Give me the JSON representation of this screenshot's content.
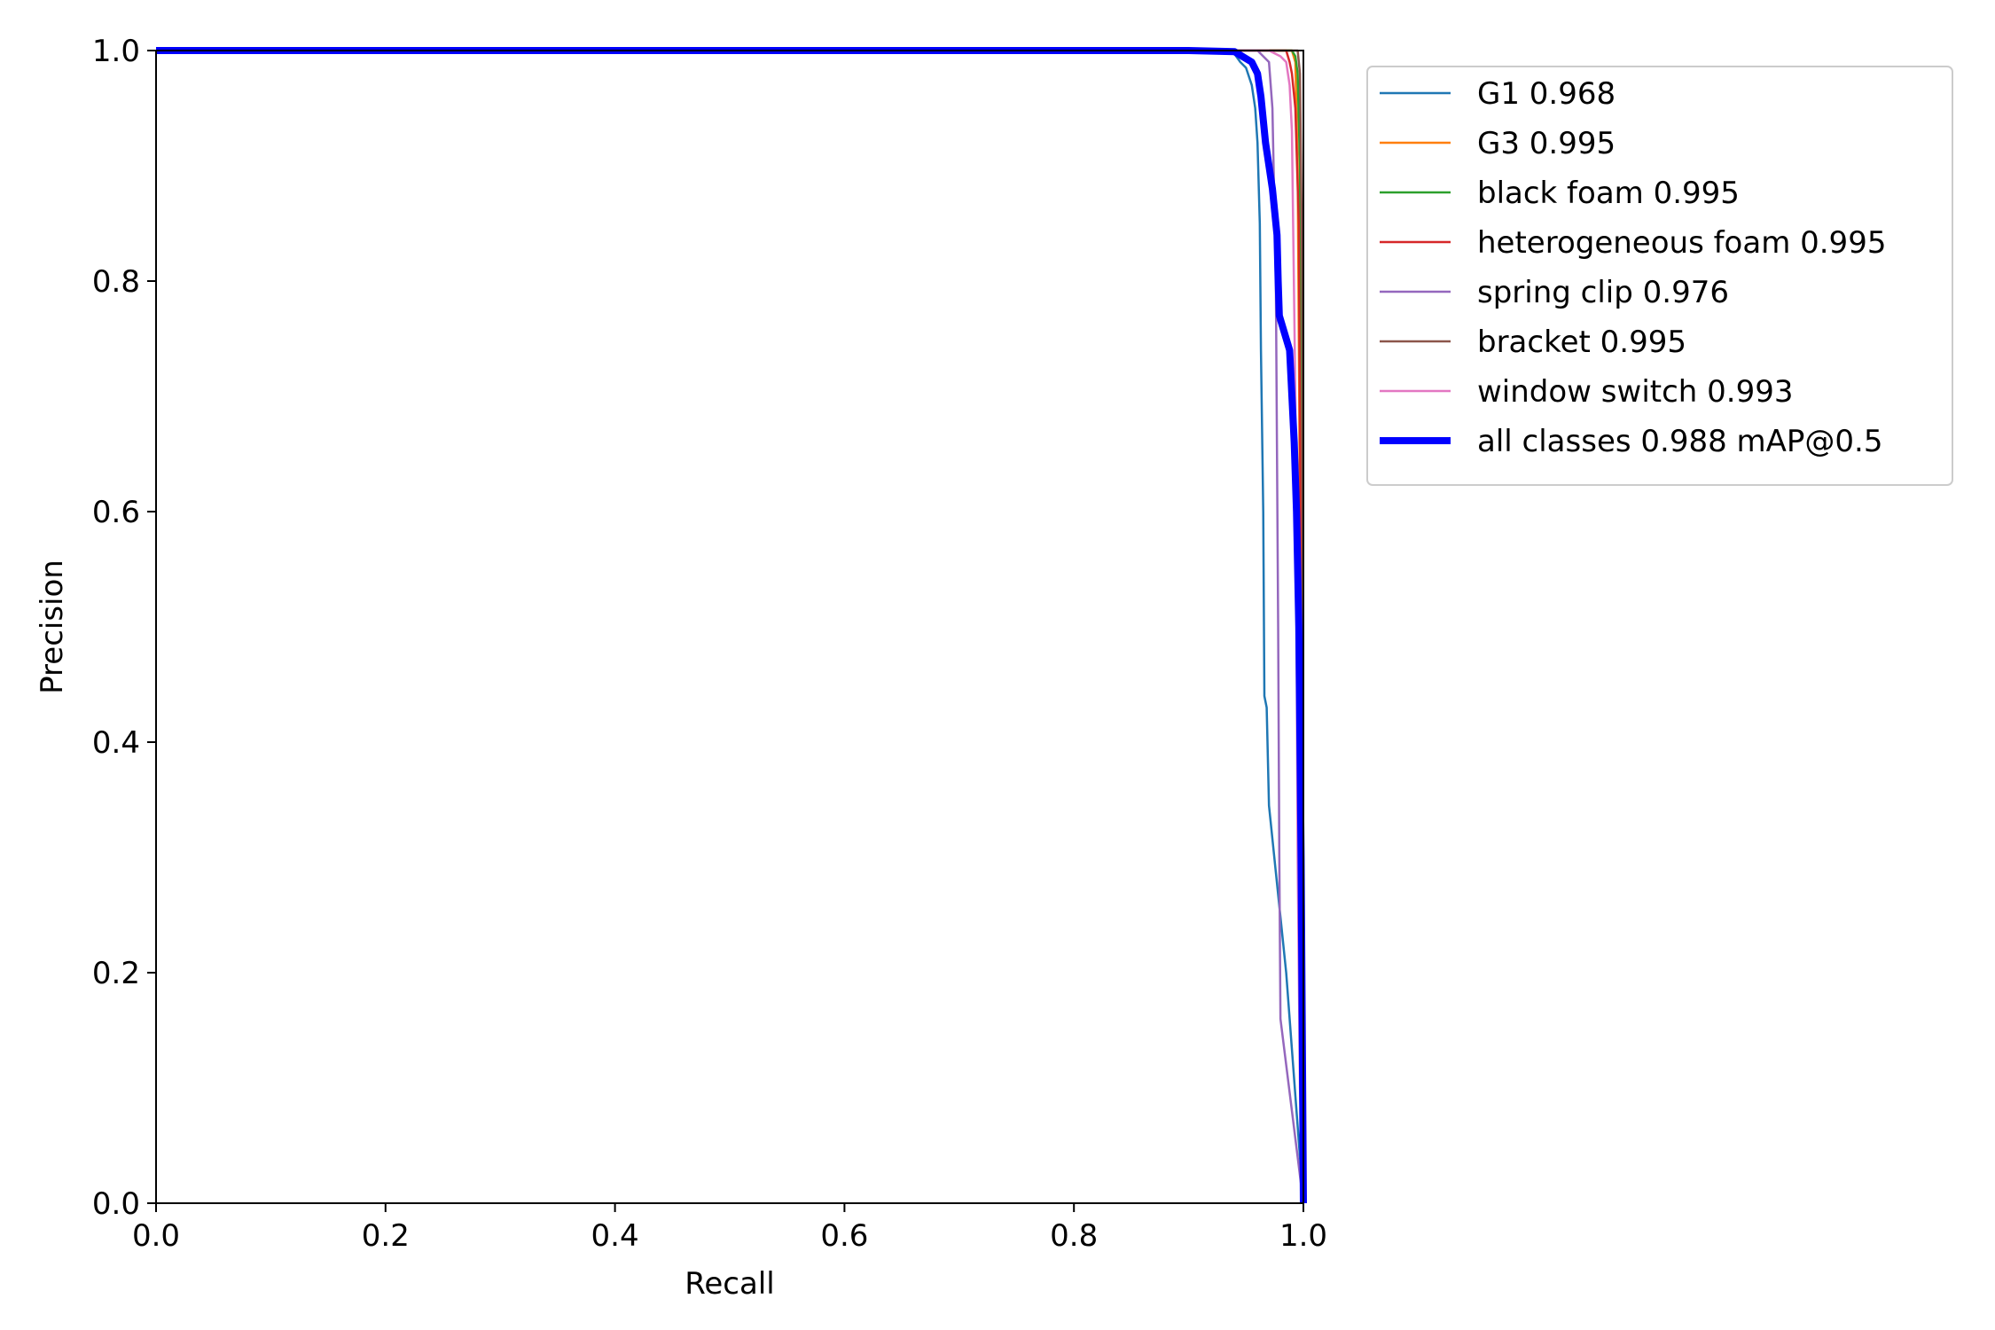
{
  "chart_data": {
    "type": "line",
    "title": "",
    "xlabel": "Recall",
    "ylabel": "Precision",
    "xlim": [
      0,
      1
    ],
    "ylim": [
      0,
      1
    ],
    "xticks": [
      "0.0",
      "0.2",
      "0.4",
      "0.6",
      "0.8",
      "1.0"
    ],
    "yticks": [
      "0.0",
      "0.2",
      "0.4",
      "0.6",
      "0.8",
      "1.0"
    ],
    "grid": false,
    "legend_position": "outside-right-top",
    "series": [
      {
        "name": "G1 0.968",
        "color": "#1f77b4",
        "width": "thin",
        "points": [
          [
            0.0,
            1.0
          ],
          [
            0.935,
            1.0
          ],
          [
            0.94,
            0.997
          ],
          [
            0.945,
            0.99
          ],
          [
            0.95,
            0.985
          ],
          [
            0.955,
            0.97
          ],
          [
            0.958,
            0.95
          ],
          [
            0.96,
            0.92
          ],
          [
            0.962,
            0.85
          ],
          [
            0.963,
            0.74
          ],
          [
            0.965,
            0.6
          ],
          [
            0.966,
            0.44
          ],
          [
            0.968,
            0.43
          ],
          [
            0.97,
            0.345
          ],
          [
            0.985,
            0.2
          ],
          [
            1.0,
            0.0
          ]
        ]
      },
      {
        "name": "G3 0.995",
        "color": "#ff7f0e",
        "width": "thin",
        "points": [
          [
            0.0,
            1.0
          ],
          [
            0.99,
            1.0
          ],
          [
            0.993,
            0.99
          ],
          [
            0.995,
            0.9
          ],
          [
            0.997,
            0.6
          ],
          [
            0.999,
            0.2
          ],
          [
            1.0,
            0.0
          ]
        ]
      },
      {
        "name": "black foam 0.995",
        "color": "#2ca02c",
        "width": "thin",
        "points": [
          [
            0.0,
            1.0
          ],
          [
            0.99,
            1.0
          ],
          [
            0.993,
            0.995
          ],
          [
            0.995,
            0.98
          ],
          [
            0.997,
            0.9
          ],
          [
            0.999,
            0.5
          ],
          [
            1.0,
            0.0
          ]
        ]
      },
      {
        "name": "heterogeneous foam 0.995",
        "color": "#d62728",
        "width": "thin",
        "points": [
          [
            0.0,
            1.0
          ],
          [
            0.985,
            1.0
          ],
          [
            0.988,
            0.99
          ],
          [
            0.99,
            0.98
          ],
          [
            0.993,
            0.95
          ],
          [
            0.996,
            0.85
          ],
          [
            0.998,
            0.5
          ],
          [
            1.0,
            0.0
          ]
        ]
      },
      {
        "name": "spring clip 0.976",
        "color": "#9467bd",
        "width": "thin",
        "points": [
          [
            0.0,
            1.0
          ],
          [
            0.96,
            1.0
          ],
          [
            0.97,
            0.99
          ],
          [
            0.973,
            0.95
          ],
          [
            0.976,
            0.8
          ],
          [
            0.978,
            0.5
          ],
          [
            0.979,
            0.3
          ],
          [
            0.98,
            0.16
          ],
          [
            0.99,
            0.08
          ],
          [
            1.0,
            0.0
          ]
        ]
      },
      {
        "name": "bracket 0.995",
        "color": "#8c564b",
        "width": "thin",
        "points": [
          [
            0.0,
            1.0
          ],
          [
            0.995,
            1.0
          ],
          [
            0.997,
            0.98
          ],
          [
            0.999,
            0.8
          ],
          [
            1.0,
            0.0
          ]
        ]
      },
      {
        "name": "window switch 0.993",
        "color": "#e377c2",
        "width": "thin",
        "points": [
          [
            0.0,
            1.0
          ],
          [
            0.97,
            1.0
          ],
          [
            0.98,
            0.995
          ],
          [
            0.985,
            0.99
          ],
          [
            0.988,
            0.97
          ],
          [
            0.99,
            0.93
          ],
          [
            0.993,
            0.7
          ],
          [
            0.995,
            0.3
          ],
          [
            0.997,
            0.1
          ],
          [
            1.0,
            0.0
          ]
        ]
      },
      {
        "name": "all classes 0.988 mAP@0.5",
        "color": "#0000ff",
        "width": "thick",
        "points": [
          [
            0.0,
            1.0
          ],
          [
            0.9,
            1.0
          ],
          [
            0.94,
            0.999
          ],
          [
            0.955,
            0.99
          ],
          [
            0.96,
            0.98
          ],
          [
            0.963,
            0.96
          ],
          [
            0.965,
            0.94
          ],
          [
            0.967,
            0.92
          ],
          [
            0.97,
            0.9
          ],
          [
            0.973,
            0.88
          ],
          [
            0.975,
            0.86
          ],
          [
            0.977,
            0.84
          ],
          [
            0.978,
            0.8
          ],
          [
            0.979,
            0.77
          ],
          [
            0.982,
            0.76
          ],
          [
            0.985,
            0.75
          ],
          [
            0.988,
            0.74
          ],
          [
            0.99,
            0.7
          ],
          [
            0.992,
            0.66
          ],
          [
            0.994,
            0.6
          ],
          [
            0.996,
            0.5
          ],
          [
            0.998,
            0.3
          ],
          [
            1.0,
            0.0
          ]
        ]
      }
    ]
  }
}
